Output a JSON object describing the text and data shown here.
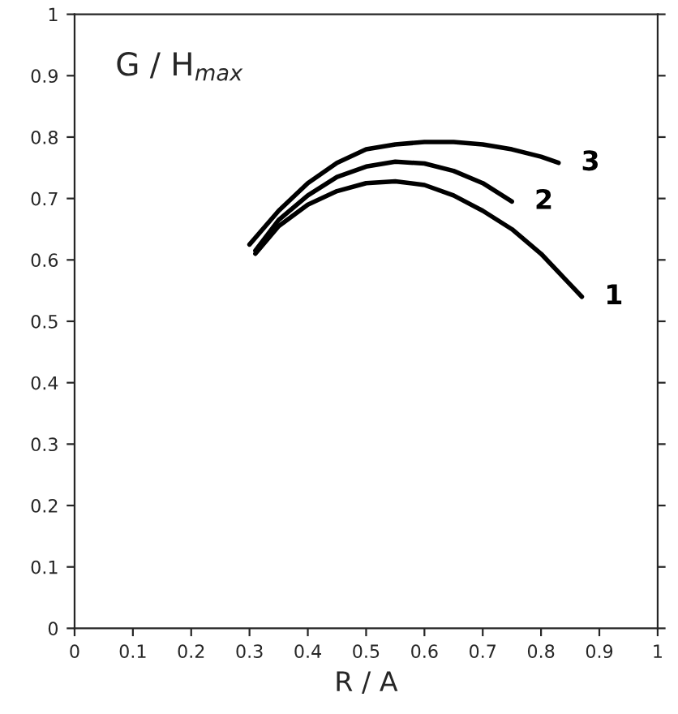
{
  "chart_data": {
    "type": "line",
    "xlabel": "R / A",
    "annotations": [
      "G / H$_{max}$"
    ],
    "series": [
      {
        "name": "1",
        "color": "#000000",
        "x": [
          0.31,
          0.35,
          0.4,
          0.45,
          0.5,
          0.55,
          0.6,
          0.65,
          0.7,
          0.75,
          0.8,
          0.85,
          0.87
        ],
        "values": [
          0.61,
          0.655,
          0.69,
          0.712,
          0.725,
          0.728,
          0.722,
          0.705,
          0.68,
          0.65,
          0.61,
          0.56,
          0.54
        ]
      },
      {
        "name": "2",
        "color": "#000000",
        "x": [
          0.31,
          0.35,
          0.4,
          0.45,
          0.5,
          0.55,
          0.6,
          0.65,
          0.7,
          0.75
        ],
        "values": [
          0.615,
          0.665,
          0.705,
          0.735,
          0.752,
          0.76,
          0.757,
          0.745,
          0.725,
          0.695
        ]
      },
      {
        "name": "3",
        "color": "#000000",
        "x": [
          0.3,
          0.35,
          0.4,
          0.45,
          0.5,
          0.55,
          0.6,
          0.65,
          0.7,
          0.75,
          0.8,
          0.83
        ],
        "values": [
          0.625,
          0.68,
          0.725,
          0.758,
          0.78,
          0.788,
          0.792,
          0.792,
          0.788,
          0.78,
          0.768,
          0.758
        ]
      }
    ],
    "xlim": [
      0,
      1
    ],
    "ylim": [
      0,
      1
    ],
    "xticks": [
      0,
      0.1,
      0.2,
      0.3,
      0.4,
      0.5,
      0.6,
      0.7,
      0.8,
      0.9,
      1
    ],
    "yticks": [
      0,
      0.1,
      0.2,
      0.3,
      0.4,
      0.5,
      0.6,
      0.7,
      0.8,
      0.9,
      1
    ],
    "grid": false,
    "legend": false,
    "marker": "none",
    "line_style": "solid"
  }
}
